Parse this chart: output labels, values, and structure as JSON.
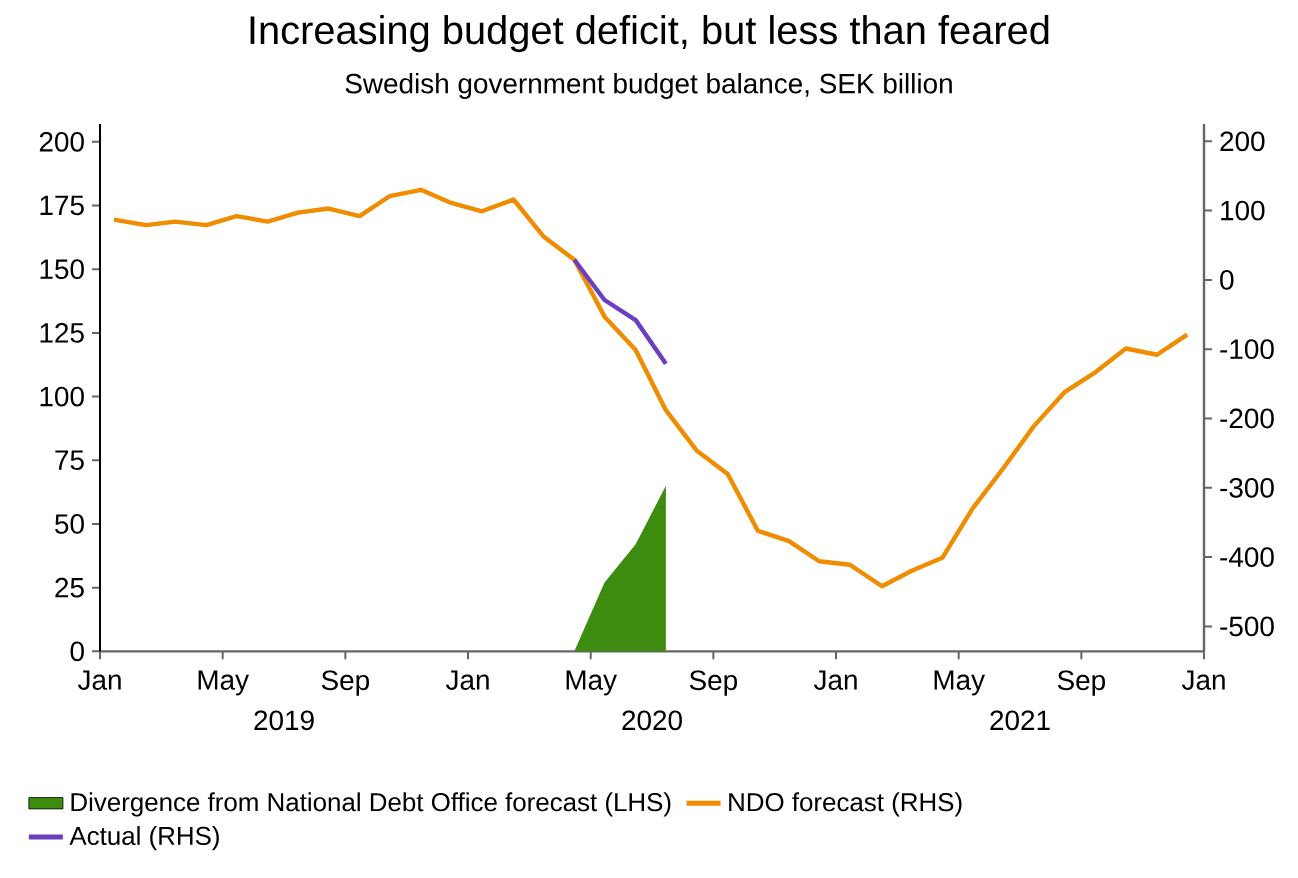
{
  "chart_data": {
    "type": "line",
    "title": "Increasing budget deficit, but less than feared",
    "subtitle": "Swedish government budget balance, SEK billion",
    "xlim": [
      "2019-01",
      "2022-01"
    ],
    "xticks": [
      {
        "value": "2019-01",
        "label": "Jan"
      },
      {
        "value": "2019-05",
        "label": "May"
      },
      {
        "value": "2019-09",
        "label": "Sep"
      },
      {
        "value": "2020-01",
        "label": "Jan"
      },
      {
        "value": "2020-05",
        "label": "May"
      },
      {
        "value": "2020-09",
        "label": "Sep"
      },
      {
        "value": "2021-01",
        "label": "Jan"
      },
      {
        "value": "2021-05",
        "label": "May"
      },
      {
        "value": "2021-09",
        "label": "Sep"
      },
      {
        "value": "2022-01",
        "label": "Jan"
      }
    ],
    "annotations": [
      "2019",
      "2020",
      "2021"
    ],
    "ylim": [
      0,
      207
    ],
    "yticks": [
      0,
      25,
      50,
      75,
      100,
      125,
      150,
      175,
      200
    ],
    "y2lim": [
      -536,
      225
    ],
    "y2ticks": [
      -500,
      -400,
      -300,
      -200,
      -100,
      0,
      100,
      200
    ],
    "legend": "bottom",
    "grid": false,
    "marker": "none",
    "line_style": "solid",
    "series": [
      {
        "name": "Divergence from National Debt Office forecast (LHS)",
        "type": "area",
        "color": "#3d8c0f",
        "x": [
          "2020-04-15",
          "2020-05-15",
          "2020-06-15",
          "2020-07-15"
        ],
        "values": [
          0,
          27,
          42,
          65
        ]
      },
      {
        "name": "NDO forecast (RHS)",
        "axis": "y2",
        "color": "#f08c00",
        "x": [
          "2019-01-15",
          "2019-02-15",
          "2019-03-15",
          "2019-04-15",
          "2019-05-15",
          "2019-06-15",
          "2019-07-15",
          "2019-08-15",
          "2019-09-15",
          "2019-10-15",
          "2019-11-15",
          "2019-12-15",
          "2020-01-15",
          "2020-02-15",
          "2020-03-15",
          "2020-04-15",
          "2020-05-15",
          "2020-06-15",
          "2020-07-15",
          "2020-08-15",
          "2020-09-15",
          "2020-10-15",
          "2020-11-15",
          "2020-12-15",
          "2021-01-15",
          "2021-02-15",
          "2021-03-15",
          "2021-04-15",
          "2021-05-15",
          "2021-06-15",
          "2021-07-15",
          "2021-08-15",
          "2021-09-15",
          "2021-10-15",
          "2021-11-15",
          "2021-12-15"
        ],
        "values": [
          87,
          79,
          84,
          79,
          92,
          84,
          97,
          103,
          92,
          121,
          130,
          111,
          99,
          116,
          63,
          29,
          -53,
          -101,
          -188,
          -246,
          -280,
          -362,
          -377,
          -406,
          -411,
          -442,
          -420,
          -401,
          -330,
          -271,
          -211,
          -162,
          -133,
          -99,
          -108,
          -79
        ]
      },
      {
        "name": "Actual (RHS)",
        "axis": "y2",
        "color": "#6b3fbf",
        "x": [
          "2020-04-15",
          "2020-05-15",
          "2020-06-15",
          "2020-07-15"
        ],
        "values": [
          29,
          -29,
          -58,
          -121
        ]
      }
    ]
  }
}
